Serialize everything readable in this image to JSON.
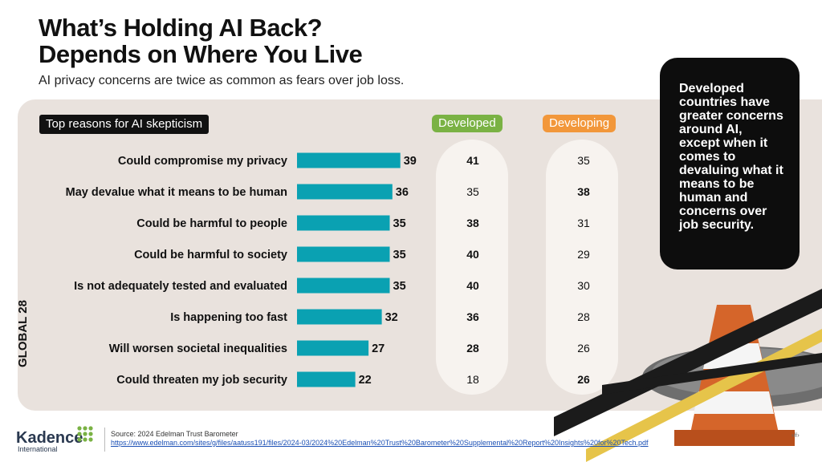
{
  "title_line1": "What’s Holding AI Back?",
  "title_line2": "Depends on Where You Live",
  "subtitle": "AI privacy concerns are twice as common as fears over job loss.",
  "header_pill": "Top reasons for AI skepticism",
  "group_labels": {
    "developed": "Developed",
    "developing": "Developing"
  },
  "global_label": "GLOBAL 28",
  "callout": "Developed countries have greater concerns around AI, except when it comes to devaluing what it means to be human and concerns over job security.",
  "colors": {
    "bar": "#0aa1b2",
    "developed": "#7ab244",
    "developing": "#f2973a",
    "panel": "#e9e2dd"
  },
  "chart_data": {
    "type": "bar",
    "orientation": "horizontal",
    "categories": [
      "Could compromise my privacy",
      "May devalue what it means to be human",
      "Could be harmful to people",
      "Could be harmful to society",
      "Is not adequately tested and evaluated",
      "Is happening too fast",
      "Will worsen societal inequalities",
      "Could threaten my job security"
    ],
    "series": [
      {
        "name": "GLOBAL 28",
        "values": [
          39,
          36,
          35,
          35,
          35,
          32,
          27,
          22
        ]
      },
      {
        "name": "Developed",
        "values": [
          41,
          35,
          38,
          40,
          40,
          36,
          28,
          18
        ]
      },
      {
        "name": "Developing",
        "values": [
          35,
          38,
          31,
          29,
          30,
          28,
          26,
          26
        ]
      }
    ],
    "bold_highlight": {
      "Developed": [
        true,
        false,
        true,
        true,
        true,
        true,
        true,
        false
      ],
      "Developing": [
        false,
        true,
        false,
        false,
        false,
        false,
        false,
        true
      ]
    }
  },
  "footer": {
    "logo": "Kadence",
    "logo_sub": "International",
    "source": "Source: 2024 Edelman Trust Barometer",
    "url": "https://www.edelman.com/sites/g/files/aatuss191/files/2024-03/2024%20Edelman%20Trust%20Barometer%20Supplemental%20Report%20Insights%20for%20Tech.pdf"
  }
}
